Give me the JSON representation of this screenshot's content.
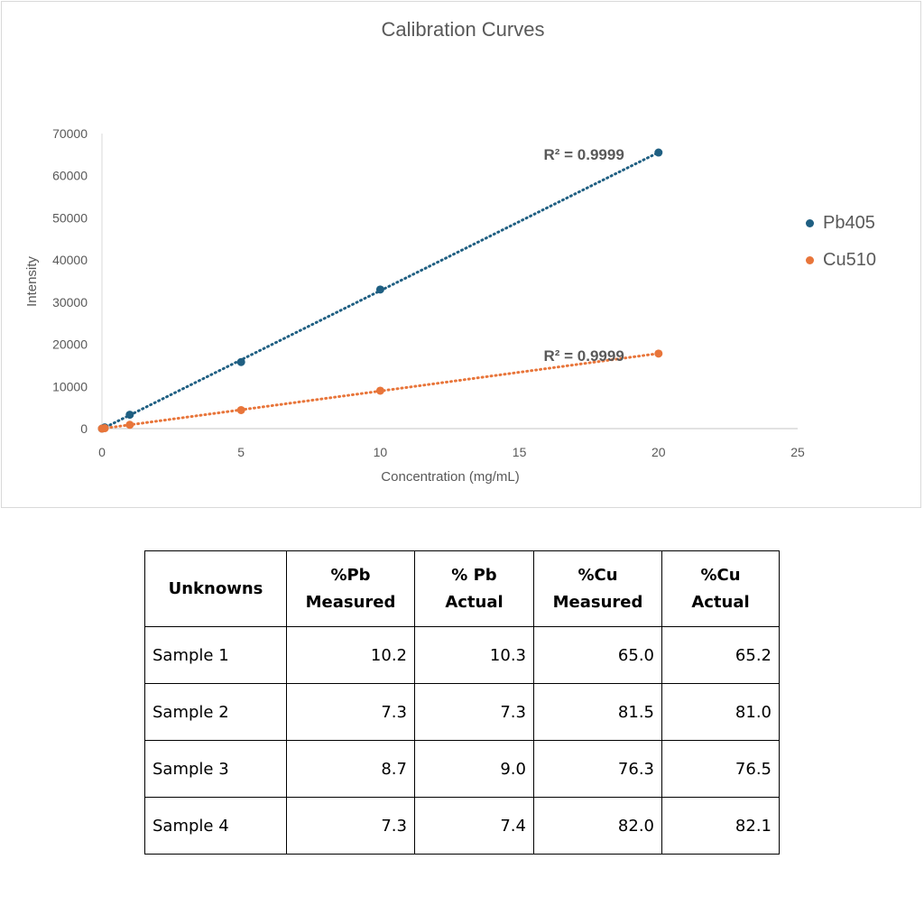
{
  "chart_data": {
    "type": "scatter",
    "title": "Calibration Curves",
    "xlabel": "Concentration (mg/mL)",
    "ylabel": "Intensity",
    "xlim": [
      0,
      25
    ],
    "ylim": [
      0,
      70000
    ],
    "x_ticks": [
      0,
      5,
      10,
      15,
      20,
      25
    ],
    "y_ticks": [
      0,
      10000,
      20000,
      30000,
      40000,
      50000,
      60000,
      70000
    ],
    "grid": false,
    "legend": "right",
    "series": [
      {
        "name": "Pb405",
        "color": "#1f5f82",
        "trendline": "linear",
        "r2_label": "R² = 0.9999",
        "points": [
          [
            0,
            0
          ],
          [
            0.1,
            300
          ],
          [
            1,
            3300
          ],
          [
            5,
            15800
          ],
          [
            10,
            33000
          ],
          [
            20,
            65500
          ]
        ]
      },
      {
        "name": "Cu510",
        "color": "#e8753a",
        "trendline": "linear",
        "r2_label": "R² = 0.9999",
        "points": [
          [
            0,
            0
          ],
          [
            0.1,
            100
          ],
          [
            1,
            900
          ],
          [
            5,
            4400
          ],
          [
            10,
            9000
          ],
          [
            20,
            17800
          ]
        ]
      }
    ]
  },
  "table": {
    "headers": [
      "Unknowns",
      "%Pb Measured",
      "% Pb Actual",
      "%Cu Measured",
      "%Cu Actual"
    ],
    "rows": [
      [
        "Sample 1",
        "10.2",
        "10.3",
        "65.0",
        "65.2"
      ],
      [
        "Sample 2",
        "7.3",
        "7.3",
        "81.5",
        "81.0"
      ],
      [
        "Sample 3",
        "8.7",
        "9.0",
        "76.3",
        "76.5"
      ],
      [
        "Sample 4",
        "7.3",
        "7.4",
        "82.0",
        "82.1"
      ]
    ]
  }
}
